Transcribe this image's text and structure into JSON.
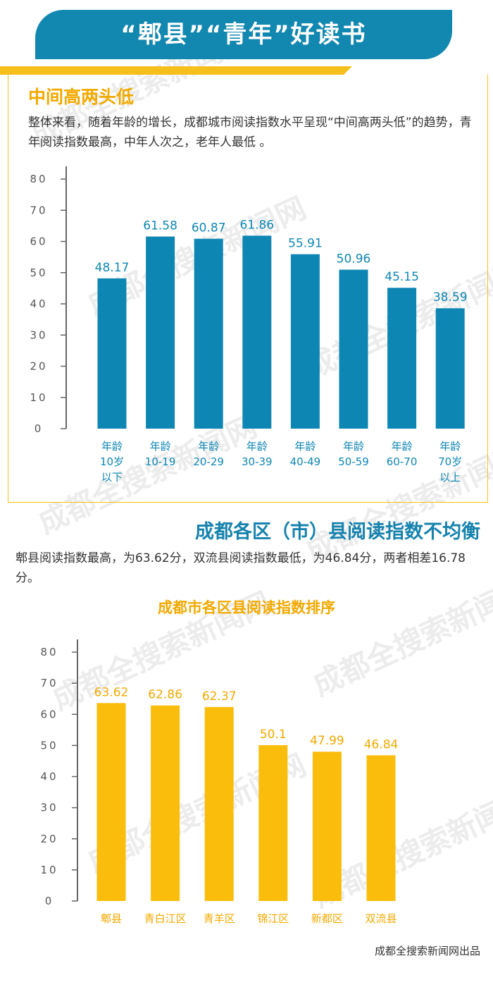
{
  "banner": {
    "title": "“郫县”“青年”好读书",
    "color": "#1287b0"
  },
  "section1": {
    "heading": "中间高两头低",
    "description": "整体来看，随着年龄的增长，成都城市阅读指数水平呈现“中间高两头低”的趋势，青年阅读指数最高，中年人次之，老年人最低 。"
  },
  "section2": {
    "heading": "成都各区（市）县阅读指数不均衡",
    "description": "郫县阅读指数最高，为63.62分，双流县阅读指数最低，为46.84分，两者相差16.78分。"
  },
  "watermark": "成都全搜索新闻网",
  "footer": "成都全搜索新闻网出品",
  "chart_data": [
    {
      "type": "bar",
      "categories": [
        "年龄\n10岁\n以下",
        "年龄\n10-19",
        "年龄\n20-29",
        "年龄\n30-39",
        "年龄\n40-49",
        "年龄\n50-59",
        "年龄\n60-70",
        "年龄\n70岁\n以上"
      ],
      "values": [
        48.17,
        61.58,
        60.87,
        61.86,
        55.91,
        50.96,
        45.15,
        38.59
      ],
      "value_labels": [
        "48.17",
        "61.58",
        "60.87",
        "61.86",
        "55.91",
        "50.96",
        "45.15",
        "38.59"
      ],
      "yticks": [
        "0",
        "10",
        "20",
        "30",
        "40",
        "50",
        "60",
        "70",
        "80"
      ],
      "ylim": [
        0,
        80
      ],
      "color": "#0e86b3",
      "label_color": "#0e86b3",
      "tick_color": "#555555"
    },
    {
      "type": "bar",
      "title": "成都市各区县阅读指数排序",
      "categories": [
        "郫县",
        "青白江区",
        "青羊区",
        "锦江区",
        "新都区",
        "双流县"
      ],
      "values": [
        63.62,
        62.86,
        62.37,
        50.1,
        47.99,
        46.84
      ],
      "value_labels": [
        "63.62",
        "62.86",
        "62.37",
        "50.1",
        "47.99",
        "46.84"
      ],
      "yticks": [
        "0",
        "10",
        "20",
        "30",
        "40",
        "50",
        "60",
        "70",
        "80"
      ],
      "ylim": [
        0,
        80
      ],
      "color": "#fbbd0b",
      "label_color": "#f2a900",
      "tick_color": "#555555"
    }
  ]
}
